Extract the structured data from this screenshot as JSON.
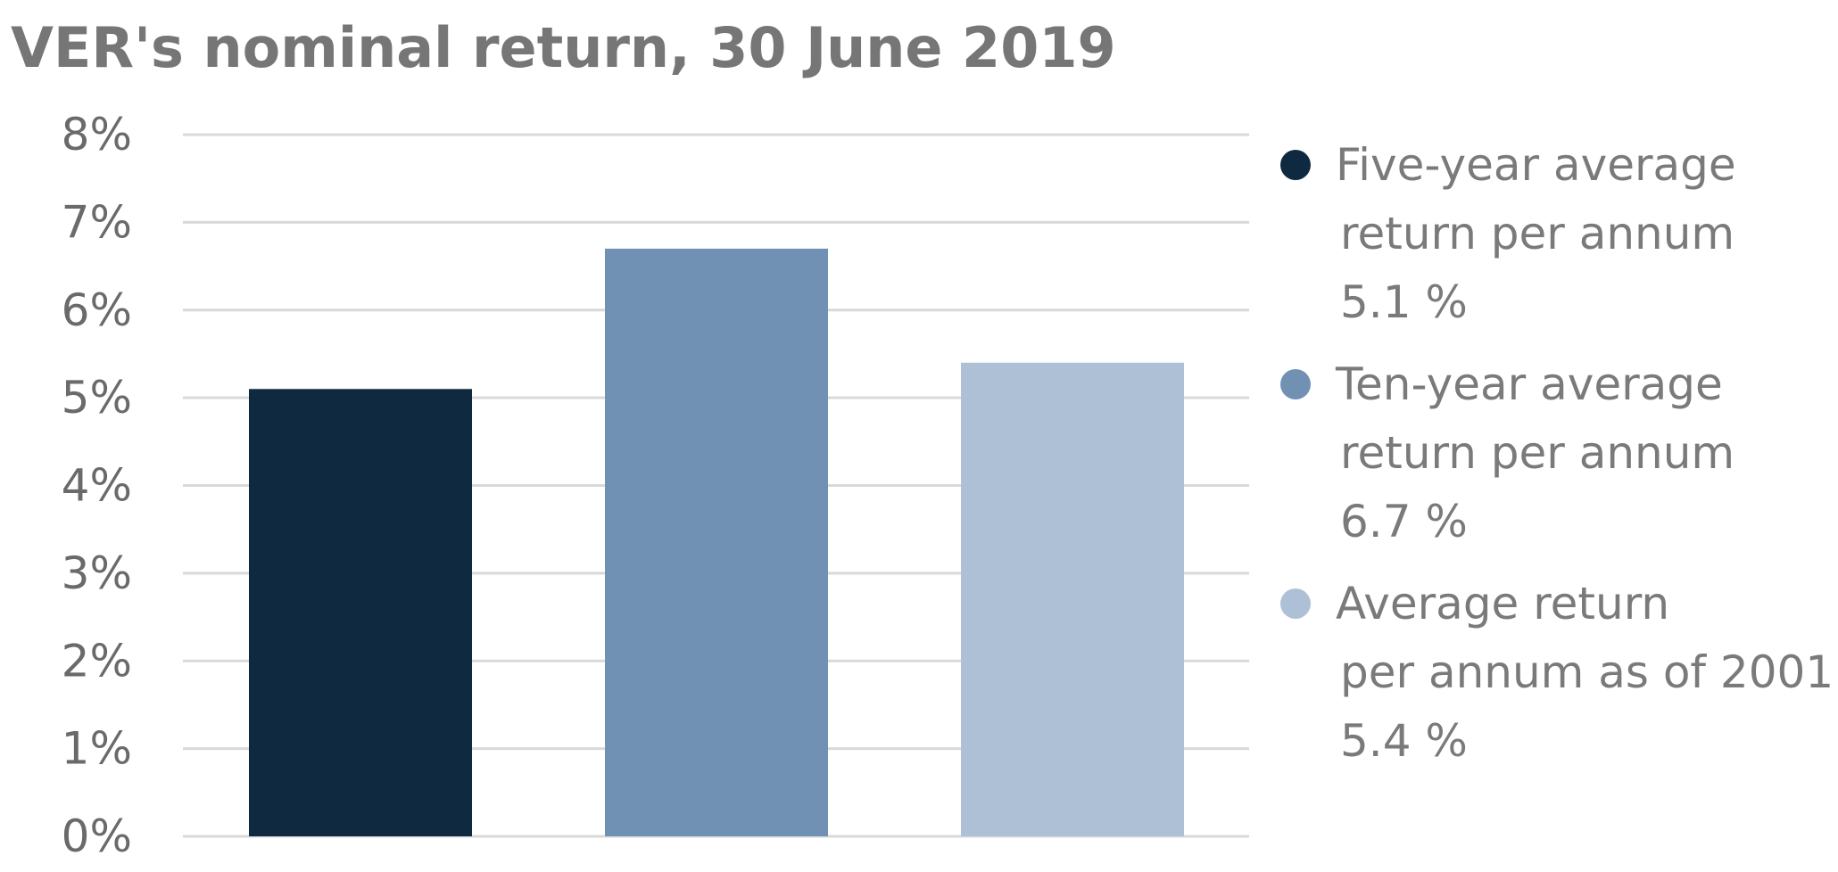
{
  "chart_data": {
    "type": "bar",
    "title": "VER's nominal return, 30 June 2019",
    "xlabel": "",
    "ylabel": "",
    "ylim": [
      0,
      8
    ],
    "y_ticks": [
      "0%",
      "1%",
      "2%",
      "3%",
      "4%",
      "5%",
      "6%",
      "7%",
      "8%"
    ],
    "grid": true,
    "legend_position": "right",
    "series": [
      {
        "name": "Five-year average return per annum",
        "legend_lines": [
          "Five-year average",
          "return per annum",
          "5.1 %"
        ],
        "value": 5.1,
        "color": "#0f2a40"
      },
      {
        "name": "Ten-year average return per annum",
        "legend_lines": [
          "Ten-year average",
          "return per annum",
          "6.7 %"
        ],
        "value": 6.7,
        "color": "#7091b3"
      },
      {
        "name": "Average return per annum as of 2001",
        "legend_lines": [
          "Average return",
          "per annum as of 2001",
          "5.4 %"
        ],
        "value": 5.4,
        "color": "#adc0d5"
      }
    ]
  }
}
